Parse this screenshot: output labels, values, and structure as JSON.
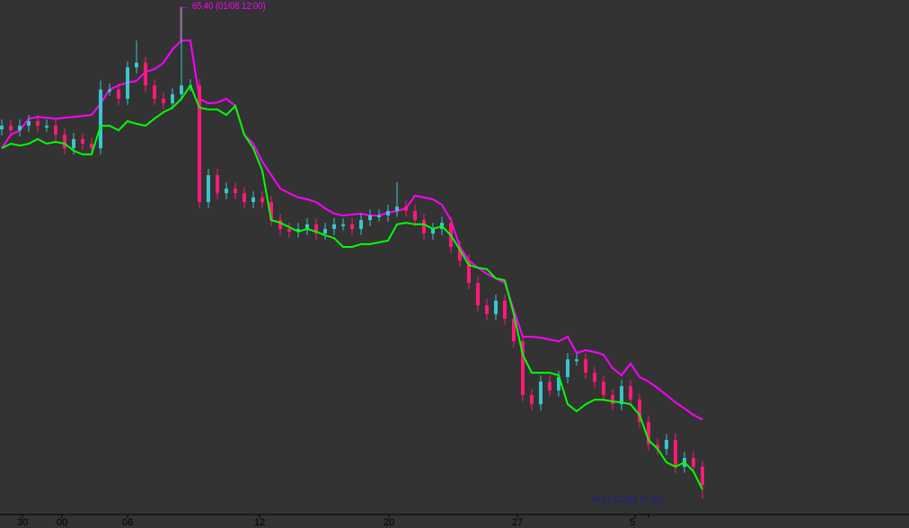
{
  "chart_data": {
    "type": "candlestick",
    "title": "",
    "colors": {
      "background": "#333333",
      "bull": "#3cc4d0",
      "bear": "#ff1a78",
      "upper_line": "#ff00ff",
      "lower_line": "#00ff00",
      "high_label": "#ff00ff",
      "low_label": "#1c1c8e",
      "axis": "#000000"
    },
    "x_tick_labels": [
      "30",
      "00",
      "06",
      "12",
      "20",
      "27",
      "5"
    ],
    "grid": false,
    "annotations": {
      "high": {
        "text": "65.40 (01/08 12:00)",
        "value": 65.4,
        "arrow": "←"
      },
      "low": {
        "text": "49.31 (02/05 07:00)",
        "value": 49.31,
        "arrow": "→"
      }
    },
    "ylim": [
      49.0,
      65.6
    ],
    "open": [
      61.4,
      61.52,
      61.37,
      61.52,
      61.67,
      61.52,
      61.52,
      61.23,
      60.78,
      61.08,
      60.93,
      60.78,
      62.7,
      62.7,
      62.4,
      63.43,
      63.58,
      62.84,
      62.4,
      62.25,
      62.55,
      62.84,
      62.84,
      59.02,
      59.9,
      59.31,
      59.46,
      59.31,
      59.02,
      59.17,
      59.02,
      58.43,
      58.14,
      58.05,
      58.14,
      58.29,
      57.99,
      58.14,
      58.29,
      58.29,
      58.14,
      58.43,
      58.58,
      58.58,
      58.73,
      58.87,
      58.73,
      58.43,
      57.99,
      58.14,
      58.34,
      57.55,
      57.11,
      56.37,
      55.64,
      55.35,
      55.79,
      55.2,
      54.46,
      52.7,
      52.4,
      53.14,
      52.85,
      53.29,
      53.87,
      53.87,
      53.43,
      53.14,
      52.7,
      52.4,
      52.99,
      52.55,
      51.82,
      51.08,
      50.94,
      51.23,
      50.35,
      50.64,
      50.35
    ],
    "high": [
      61.72,
      61.72,
      61.72,
      61.87,
      61.87,
      61.72,
      61.72,
      61.43,
      61.28,
      61.28,
      61.13,
      63.0,
      62.9,
      62.9,
      63.63,
      64.31,
      63.78,
      63.04,
      62.6,
      62.75,
      65.4,
      63.04,
      63.04,
      60.1,
      60.1,
      59.66,
      59.66,
      59.51,
      59.37,
      59.37,
      59.22,
      58.63,
      58.34,
      58.34,
      58.49,
      58.49,
      58.34,
      58.49,
      58.49,
      58.49,
      58.63,
      58.78,
      58.78,
      58.93,
      59.67,
      59.07,
      58.93,
      58.63,
      58.34,
      58.54,
      58.54,
      57.75,
      57.31,
      56.57,
      55.84,
      55.99,
      55.99,
      55.4,
      54.66,
      52.9,
      53.34,
      53.34,
      53.49,
      54.07,
      54.07,
      54.07,
      53.63,
      53.34,
      52.9,
      53.19,
      53.19,
      52.75,
      52.02,
      51.28,
      51.43,
      51.43,
      50.84,
      50.84,
      50.55
    ],
    "low": [
      61.2,
      61.17,
      61.17,
      61.32,
      61.32,
      61.32,
      61.03,
      60.58,
      60.58,
      60.73,
      60.58,
      60.58,
      62.5,
      62.2,
      62.2,
      63.23,
      62.64,
      62.2,
      62.05,
      62.05,
      62.35,
      62.64,
      58.82,
      58.82,
      59.11,
      59.11,
      59.11,
      58.82,
      58.82,
      58.82,
      58.23,
      57.94,
      57.85,
      57.85,
      57.94,
      57.79,
      57.79,
      57.94,
      58.09,
      57.94,
      57.94,
      58.23,
      58.38,
      58.38,
      58.53,
      58.53,
      58.23,
      57.79,
      57.79,
      57.94,
      57.35,
      56.91,
      56.17,
      55.44,
      55.15,
      55.15,
      55.0,
      54.26,
      52.5,
      52.2,
      52.2,
      52.65,
      52.65,
      53.09,
      53.67,
      53.23,
      52.94,
      52.5,
      52.2,
      52.2,
      52.35,
      51.62,
      50.88,
      50.74,
      50.74,
      50.15,
      50.15,
      50.15,
      49.31
    ],
    "close": [
      61.52,
      61.37,
      61.52,
      61.67,
      61.52,
      61.52,
      61.23,
      60.78,
      61.08,
      60.93,
      60.78,
      62.7,
      62.7,
      62.4,
      63.43,
      63.58,
      62.84,
      62.4,
      62.25,
      62.55,
      62.84,
      62.84,
      59.02,
      59.9,
      59.31,
      59.46,
      59.31,
      59.02,
      59.17,
      59.02,
      58.43,
      58.14,
      58.05,
      58.14,
      58.29,
      57.99,
      58.14,
      58.29,
      58.29,
      58.14,
      58.43,
      58.58,
      58.58,
      58.73,
      58.87,
      58.73,
      58.43,
      57.99,
      58.14,
      58.34,
      57.55,
      57.11,
      56.37,
      55.64,
      55.35,
      55.79,
      55.2,
      54.46,
      52.7,
      52.4,
      53.14,
      52.85,
      53.29,
      53.87,
      53.87,
      53.43,
      53.14,
      52.7,
      52.4,
      52.99,
      52.55,
      51.82,
      51.08,
      50.94,
      51.23,
      50.35,
      50.64,
      50.35,
      49.76
    ],
    "upper_line": [
      60.78,
      61.22,
      61.37,
      61.75,
      61.81,
      61.78,
      61.75,
      61.78,
      61.81,
      61.84,
      61.87,
      62.25,
      62.7,
      62.84,
      62.93,
      62.99,
      63.28,
      63.37,
      63.58,
      64.02,
      64.31,
      64.31,
      62.4,
      62.25,
      62.28,
      62.4,
      62.17,
      61.22,
      60.93,
      60.34,
      59.9,
      59.46,
      59.31,
      59.17,
      59.11,
      59.02,
      58.81,
      58.64,
      58.58,
      58.61,
      58.64,
      58.58,
      58.58,
      58.67,
      58.73,
      58.81,
      59.23,
      59.17,
      59.11,
      58.93,
      58.43,
      57.55,
      57.11,
      56.87,
      56.67,
      56.52,
      56.37,
      55.49,
      54.61,
      54.61,
      54.58,
      54.52,
      54.46,
      54.61,
      54.08,
      54.17,
      54.11,
      54.02,
      53.58,
      53.35,
      53.73,
      53.29,
      53.14,
      52.93,
      52.7,
      52.46,
      52.26,
      52.05,
      51.9
    ],
    "lower_line": [
      60.78,
      60.93,
      60.87,
      60.93,
      61.08,
      60.93,
      60.99,
      60.93,
      60.7,
      60.58,
      60.58,
      61.52,
      61.52,
      61.37,
      61.67,
      61.58,
      61.52,
      61.75,
      61.96,
      62.11,
      62.4,
      62.84,
      62.11,
      62.05,
      62.05,
      61.87,
      62.17,
      61.22,
      60.78,
      60.05,
      58.43,
      58.34,
      58.2,
      58.05,
      58.14,
      58.05,
      57.93,
      57.84,
      57.55,
      57.55,
      57.64,
      57.64,
      57.7,
      57.76,
      58.29,
      58.34,
      58.29,
      58.29,
      58.14,
      58.23,
      57.93,
      57.46,
      56.96,
      56.87,
      56.82,
      56.52,
      56.46,
      55.35,
      54.02,
      53.43,
      53.43,
      53.43,
      53.35,
      52.4,
      52.17,
      52.4,
      52.55,
      52.55,
      52.49,
      52.46,
      52.4,
      52.05,
      51.23,
      50.94,
      50.5,
      50.35,
      50.5,
      50.2,
      49.61
    ]
  }
}
